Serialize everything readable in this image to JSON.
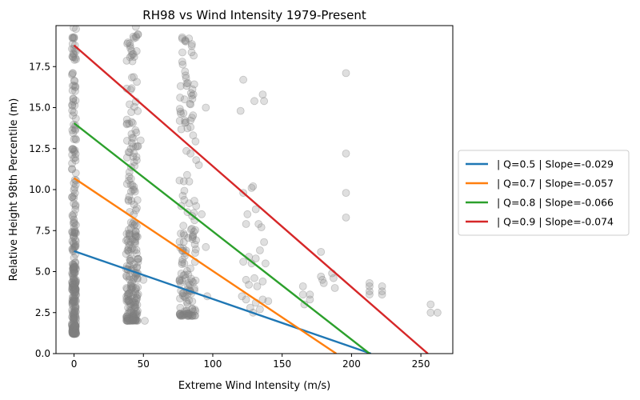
{
  "chart_data": {
    "type": "scatter",
    "title": "RH98 vs Wind Intensity 1979-Present",
    "xlabel": "Extreme Wind Intensity (m/s)",
    "ylabel": "Relative Height 98th Percentile (m)",
    "xlim": [
      -13,
      273
    ],
    "ylim": [
      0,
      20
    ],
    "x_ticks": [
      0,
      50,
      100,
      150,
      200,
      250
    ],
    "y_ticks": [
      0.0,
      2.5,
      5.0,
      7.5,
      10.0,
      12.5,
      15.0,
      17.5
    ],
    "grid": false,
    "legend_position": "outside-right",
    "point_color": "#808080",
    "clusters": [
      {
        "x_center": 0,
        "x_spread": 1.5,
        "y_min": 1.2,
        "y_max": 20,
        "count": 300
      },
      {
        "x_center": 42,
        "x_spread": 4.5,
        "y_min": 2.0,
        "y_max": 20,
        "count": 260
      },
      {
        "x_center": 82,
        "x_spread": 6,
        "y_min": 2.3,
        "y_max": 19.3,
        "count": 160
      }
    ],
    "points": [
      [
        0,
        1.3
      ],
      [
        0,
        1.2
      ],
      [
        45,
        12.0
      ],
      [
        48,
        13.0
      ],
      [
        50,
        4.5
      ],
      [
        51,
        2.0
      ],
      [
        78,
        19.2
      ],
      [
        78,
        17.8
      ],
      [
        80,
        17.2
      ],
      [
        82,
        16.5
      ],
      [
        84,
        15.2
      ],
      [
        86,
        15.8
      ],
      [
        95,
        15.0
      ],
      [
        84,
        12.2
      ],
      [
        88,
        11.8
      ],
      [
        90,
        11.5
      ],
      [
        88,
        9.0
      ],
      [
        92,
        8.5
      ],
      [
        95,
        6.5
      ],
      [
        96,
        3.5
      ],
      [
        122,
        16.7
      ],
      [
        120,
        14.8
      ],
      [
        130,
        15.4
      ],
      [
        136,
        15.8
      ],
      [
        137,
        15.4
      ],
      [
        122,
        9.8
      ],
      [
        128,
        10.1
      ],
      [
        129,
        10.2
      ],
      [
        131,
        8.8
      ],
      [
        124,
        7.9
      ],
      [
        125,
        8.5
      ],
      [
        133,
        7.9
      ],
      [
        135,
        7.7
      ],
      [
        137,
        6.8
      ],
      [
        134,
        6.3
      ],
      [
        122,
        5.6
      ],
      [
        126,
        5.9
      ],
      [
        128,
        5.5
      ],
      [
        131,
        5.8
      ],
      [
        138,
        5.5
      ],
      [
        124,
        4.5
      ],
      [
        126,
        4.2
      ],
      [
        130,
        4.6
      ],
      [
        132,
        4.1
      ],
      [
        136,
        4.4
      ],
      [
        121,
        3.5
      ],
      [
        124,
        3.3
      ],
      [
        127,
        2.8
      ],
      [
        129,
        2.5
      ],
      [
        131,
        3.1
      ],
      [
        134,
        2.7
      ],
      [
        136,
        3.3
      ],
      [
        140,
        3.2
      ],
      [
        165,
        4.1
      ],
      [
        165,
        3.6
      ],
      [
        166,
        3.0
      ],
      [
        170,
        3.6
      ],
      [
        170,
        3.3
      ],
      [
        178,
        6.2
      ],
      [
        178,
        4.7
      ],
      [
        179,
        4.5
      ],
      [
        180,
        4.3
      ],
      [
        186,
        4.9
      ],
      [
        187,
        4.6
      ],
      [
        188,
        4.0
      ],
      [
        196,
        17.1
      ],
      [
        196,
        12.2
      ],
      [
        196,
        9.8
      ],
      [
        196,
        8.3
      ],
      [
        213,
        4.3
      ],
      [
        213,
        4.1
      ],
      [
        213,
        3.8
      ],
      [
        213,
        3.6
      ],
      [
        222,
        4.1
      ],
      [
        222,
        3.8
      ],
      [
        222,
        3.6
      ],
      [
        257,
        3.0
      ],
      [
        257,
        2.5
      ],
      [
        262,
        2.5
      ]
    ],
    "series": [
      {
        "name": "| Q=0.5 | Slope=-0.029",
        "color": "#1f77b4",
        "x": [
          0,
          214
        ],
        "y": [
          6.25,
          0.0
        ]
      },
      {
        "name": "| Q=0.7 | Slope=-0.057",
        "color": "#ff7f0e",
        "x": [
          0,
          189
        ],
        "y": [
          10.7,
          0.0
        ]
      },
      {
        "name": "| Q=0.8 | Slope=-0.066",
        "color": "#2ca02c",
        "x": [
          0,
          213
        ],
        "y": [
          14.05,
          0.0
        ]
      },
      {
        "name": "| Q=0.9 | Slope=-0.074",
        "color": "#d62728",
        "x": [
          0,
          255
        ],
        "y": [
          18.8,
          0.0
        ]
      }
    ]
  }
}
